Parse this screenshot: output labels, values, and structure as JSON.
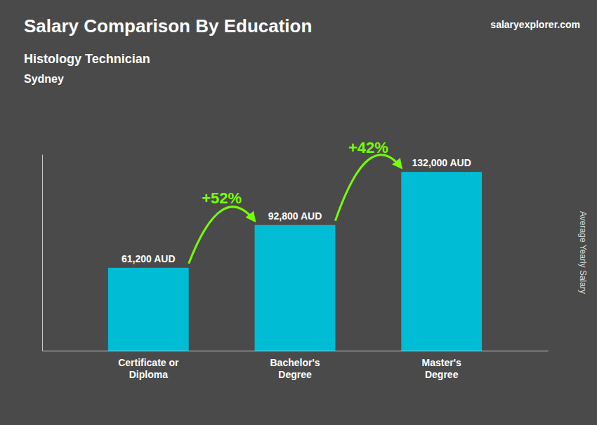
{
  "chart_data": {
    "type": "bar",
    "title": "Salary Comparison By Education",
    "subtitle": "Histology Technician",
    "location": "Sydney",
    "source": "salaryexplorer.com",
    "y_label": "Average Yearly Salary",
    "categories": [
      "Certificate or\nDiploma",
      "Bachelor's\nDegree",
      "Master's\nDegree"
    ],
    "values": [
      61200,
      92800,
      132000
    ],
    "value_labels": [
      "61,200 AUD",
      "92,800 AUD",
      "132,000 AUD"
    ],
    "data_labels": true,
    "color": "#00bcd4",
    "annotations": [
      {
        "text": "+52%",
        "color": "#76ff03"
      },
      {
        "text": "+42%",
        "color": "#76ff03"
      }
    ],
    "ylim": [
      0,
      145000
    ],
    "tick_labels": "x",
    "grid": false
  }
}
